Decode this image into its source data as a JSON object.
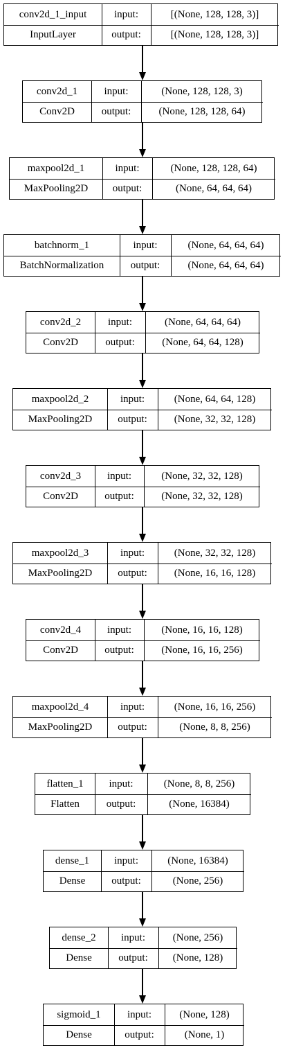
{
  "layers": [
    {
      "name": "conv2d_1_input",
      "type": "InputLayer",
      "input_label": "input:",
      "output_label": "output:",
      "input_shape": "[(None, 128, 128, 3)]",
      "output_shape": "[(None, 128, 128, 3)]"
    },
    {
      "name": "conv2d_1",
      "type": "Conv2D",
      "input_label": "input:",
      "output_label": "output:",
      "input_shape": "(None, 128, 128, 3)",
      "output_shape": "(None, 128, 128, 64)"
    },
    {
      "name": "maxpool2d_1",
      "type": "MaxPooling2D",
      "input_label": "input:",
      "output_label": "output:",
      "input_shape": "(None, 128, 128, 64)",
      "output_shape": "(None, 64, 64, 64)"
    },
    {
      "name": "batchnorm_1",
      "type": "BatchNormalization",
      "input_label": "input:",
      "output_label": "output:",
      "input_shape": "(None, 64, 64, 64)",
      "output_shape": "(None, 64, 64, 64)"
    },
    {
      "name": "conv2d_2",
      "type": "Conv2D",
      "input_label": "input:",
      "output_label": "output:",
      "input_shape": "(None, 64, 64, 64)",
      "output_shape": "(None, 64, 64, 128)"
    },
    {
      "name": "maxpool2d_2",
      "type": "MaxPooling2D",
      "input_label": "input:",
      "output_label": "output:",
      "input_shape": "(None, 64, 64, 128)",
      "output_shape": "(None, 32, 32, 128)"
    },
    {
      "name": "conv2d_3",
      "type": "Conv2D",
      "input_label": "input:",
      "output_label": "output:",
      "input_shape": "(None, 32, 32, 128)",
      "output_shape": "(None, 32, 32, 128)"
    },
    {
      "name": "maxpool2d_3",
      "type": "MaxPooling2D",
      "input_label": "input:",
      "output_label": "output:",
      "input_shape": "(None, 32, 32, 128)",
      "output_shape": "(None, 16, 16, 128)"
    },
    {
      "name": "conv2d_4",
      "type": "Conv2D",
      "input_label": "input:",
      "output_label": "output:",
      "input_shape": "(None, 16, 16, 128)",
      "output_shape": "(None, 16, 16, 256)"
    },
    {
      "name": "maxpool2d_4",
      "type": "MaxPooling2D",
      "input_label": "input:",
      "output_label": "output:",
      "input_shape": "(None, 16, 16, 256)",
      "output_shape": "(None, 8, 8, 256)"
    },
    {
      "name": "flatten_1",
      "type": "Flatten",
      "input_label": "input:",
      "output_label": "output:",
      "input_shape": "(None, 8, 8, 256)",
      "output_shape": "(None, 16384)"
    },
    {
      "name": "dense_1",
      "type": "Dense",
      "input_label": "input:",
      "output_label": "output:",
      "input_shape": "(None, 16384)",
      "output_shape": "(None, 256)"
    },
    {
      "name": "dense_2",
      "type": "Dense",
      "input_label": "input:",
      "output_label": "output:",
      "input_shape": "(None, 256)",
      "output_shape": "(None, 128)"
    },
    {
      "name": "sigmoid_1",
      "type": "Dense",
      "input_label": "input:",
      "output_label": "output:",
      "input_shape": "(None, 128)",
      "output_shape": "(None, 1)"
    }
  ]
}
